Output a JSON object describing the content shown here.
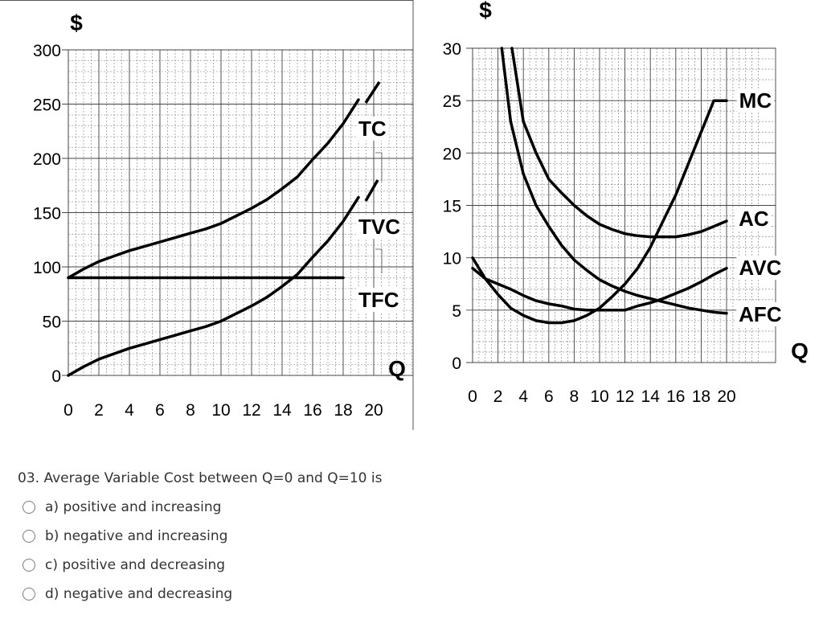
{
  "chart_data": [
    {
      "type": "line",
      "title": "",
      "ylabel": "$",
      "xlabel": "Q",
      "xlim": [
        0,
        20
      ],
      "ylim": [
        0,
        300
      ],
      "x_ticks": [
        0,
        2,
        4,
        6,
        8,
        10,
        12,
        14,
        16,
        18,
        20
      ],
      "y_ticks": [
        0,
        50,
        100,
        150,
        200,
        250,
        300
      ],
      "grid": true,
      "series": [
        {
          "name": "TC",
          "x": [
            0,
            1,
            2,
            3,
            4,
            5,
            6,
            7,
            8,
            9,
            10,
            11,
            12,
            13,
            14,
            15,
            16,
            17,
            18,
            19
          ],
          "y": [
            90,
            98,
            105,
            110,
            115,
            119,
            123,
            127,
            131,
            135,
            140,
            147,
            154,
            162,
            172,
            183,
            199,
            214,
            232,
            254
          ]
        },
        {
          "name": "TVC",
          "x": [
            0,
            1,
            2,
            3,
            4,
            5,
            6,
            7,
            8,
            9,
            10,
            11,
            12,
            13,
            14,
            15,
            16,
            17,
            18,
            19
          ],
          "y": [
            0,
            8,
            15,
            20,
            25,
            29,
            33,
            37,
            41,
            45,
            50,
            57,
            64,
            72,
            82,
            93,
            109,
            124,
            142,
            164
          ]
        },
        {
          "name": "TFC",
          "x": [
            0,
            18
          ],
          "y": [
            90,
            90
          ]
        }
      ]
    },
    {
      "type": "line",
      "title": "",
      "ylabel": "$",
      "xlabel": "Q",
      "xlim": [
        0,
        20
      ],
      "ylim": [
        0,
        30
      ],
      "x_ticks": [
        0,
        2,
        4,
        6,
        8,
        10,
        12,
        14,
        16,
        18,
        20
      ],
      "y_ticks": [
        0,
        5,
        10,
        15,
        20,
        25,
        30
      ],
      "grid": true,
      "series": [
        {
          "name": "MC",
          "x": [
            0,
            1,
            2,
            3,
            4,
            5,
            6,
            7,
            8,
            9,
            10,
            11,
            12,
            13,
            14,
            15,
            16,
            17,
            18,
            19,
            20
          ],
          "y": [
            10,
            8,
            6.5,
            5.2,
            4.5,
            4,
            3.8,
            3.8,
            4,
            4.5,
            5.2,
            6.3,
            7.5,
            9,
            11,
            13.5,
            16,
            19,
            22,
            25,
            25
          ]
        },
        {
          "name": "AC",
          "x": [
            3.1,
            4,
            5,
            6,
            7,
            8,
            9,
            10,
            11,
            12,
            13,
            14,
            15,
            16,
            17,
            18,
            19,
            20
          ],
          "y": [
            30,
            23,
            20,
            17.5,
            16.2,
            15,
            14,
            13.2,
            12.7,
            12.3,
            12.1,
            12,
            12,
            12,
            12.2,
            12.5,
            13,
            13.5
          ]
        },
        {
          "name": "AVC",
          "x": [
            0,
            1,
            2,
            3,
            4,
            5,
            6,
            7,
            8,
            9,
            10,
            11,
            12,
            13,
            14,
            15,
            16,
            17,
            18,
            19,
            20
          ],
          "y": [
            9,
            8,
            7.5,
            7,
            6.4,
            5.9,
            5.6,
            5.4,
            5.1,
            5,
            5,
            5,
            5,
            5.4,
            5.7,
            6.1,
            6.6,
            7.1,
            7.7,
            8.4,
            9
          ]
        },
        {
          "name": "AFC",
          "x": [
            2.3,
            3,
            4,
            5,
            6,
            7,
            8,
            9,
            10,
            11,
            12,
            13,
            14,
            15,
            16,
            17,
            18,
            19,
            20
          ],
          "y": [
            30,
            23,
            18,
            15,
            13,
            11.2,
            9.8,
            8.8,
            7.9,
            7.3,
            6.8,
            6.4,
            6.1,
            5.8,
            5.5,
            5.2,
            5,
            4.8,
            4.7
          ]
        }
      ]
    }
  ],
  "quiz": {
    "question": "03. Average Variable Cost between Q=0 and Q=10 is",
    "options": [
      "a) positive and increasing",
      "b) negative and increasing",
      "c) positive and decreasing",
      "d) negative and decreasing"
    ]
  },
  "colors": {
    "line": "#000000",
    "grid": "#555555",
    "quiz_text": "#333333",
    "radio_border": "#7a7a7a"
  }
}
